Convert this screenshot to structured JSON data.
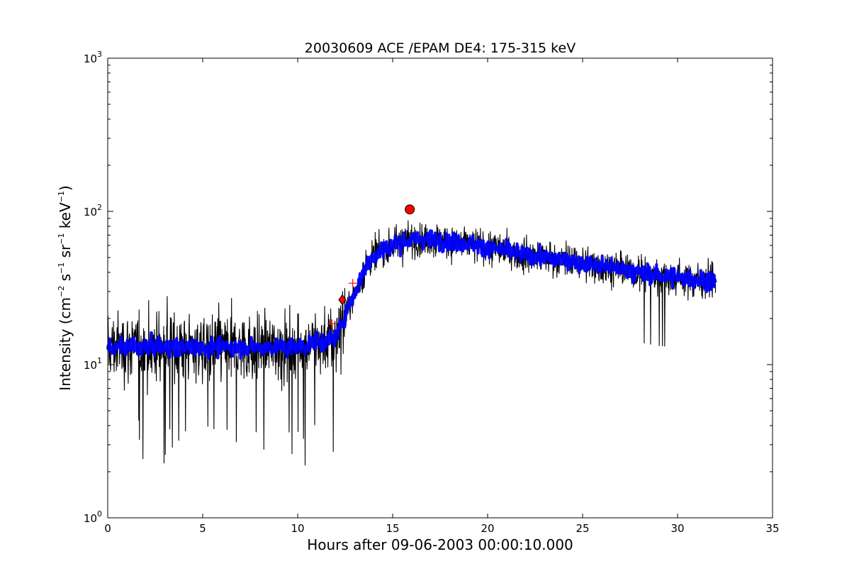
{
  "chart_data": {
    "type": "line",
    "title": "20030609 ACE /EPAM DE4: 175-315 keV",
    "xlabel": "Hours after 09-06-2003 00:00:10.000",
    "ylabel": {
      "text": "Intensity (cm",
      "exp1": "−2",
      "mid1": " s",
      "exp2": "−1",
      "mid2": " sr",
      "exp3": "−1",
      "mid3": " keV",
      "exp4": "−1",
      "end": ")"
    },
    "x_range": [
      0,
      35
    ],
    "y_range": [
      1,
      1000
    ],
    "y_scale": "log",
    "x_ticks": [
      "0",
      "5",
      "10",
      "15",
      "20",
      "25",
      "30",
      "35"
    ],
    "y_ticks": [
      {
        "base": "10",
        "exp": "0"
      },
      {
        "base": "10",
        "exp": "1"
      },
      {
        "base": "10",
        "exp": "2"
      },
      {
        "base": "10",
        "exp": "3"
      }
    ],
    "grid": false,
    "series": [
      {
        "role": "raw-intensity",
        "color": "#000000",
        "x": [
          0,
          1,
          2,
          3,
          4,
          5,
          6,
          7,
          8,
          9,
          10,
          11,
          11.5,
          12,
          12.3,
          12.6,
          13,
          13.3,
          13.6,
          14,
          14.5,
          15,
          15.5,
          16,
          16.5,
          17,
          17.5,
          18,
          18.5,
          19,
          19.5,
          20,
          21,
          22,
          23,
          24,
          25,
          26,
          27,
          28,
          29,
          30,
          31,
          32
        ],
        "y": [
          13,
          13,
          13,
          13,
          13,
          13,
          13,
          13,
          13,
          13,
          13,
          14,
          14,
          15,
          18,
          23,
          29,
          36,
          44,
          51,
          56,
          60,
          63,
          65,
          66,
          66,
          65,
          63,
          62,
          61,
          60,
          58,
          55,
          52,
          50,
          48,
          46,
          44,
          42,
          40,
          38,
          37,
          36,
          35
        ],
        "spread_low": 2.2,
        "spread_high": 28
      },
      {
        "role": "smoothed-intensity",
        "color": "#0000ff",
        "x": [
          0,
          1,
          2,
          3,
          4,
          5,
          6,
          7,
          8,
          9,
          10,
          11,
          11.5,
          12,
          12.3,
          12.6,
          13,
          13.3,
          13.6,
          14,
          14.5,
          15,
          15.5,
          16,
          16.5,
          17,
          17.5,
          18,
          18.5,
          19,
          19.5,
          20,
          21,
          22,
          23,
          24,
          25,
          26,
          27,
          28,
          29,
          30,
          31,
          32
        ],
        "y": [
          13,
          13,
          13,
          13,
          13,
          13,
          13,
          13,
          13,
          13,
          13,
          14,
          14,
          15,
          18,
          23,
          29,
          36,
          44,
          51,
          56,
          60,
          63,
          65,
          66,
          66,
          65,
          63,
          62,
          61,
          60,
          58,
          55,
          52,
          50,
          48,
          46,
          44,
          42,
          40,
          38,
          37,
          36,
          35
        ]
      }
    ],
    "markers": [
      {
        "kind": "plus",
        "x": 11.8,
        "y": 18.5,
        "color": "#ff0000"
      },
      {
        "kind": "diamond",
        "x": 12.35,
        "y": 26.5,
        "color": "#ff0000"
      },
      {
        "kind": "plus",
        "x": 12.9,
        "y": 34,
        "color": "#ff0000"
      },
      {
        "kind": "circle",
        "x": 15.9,
        "y": 103,
        "color": "#ff0000"
      }
    ]
  }
}
